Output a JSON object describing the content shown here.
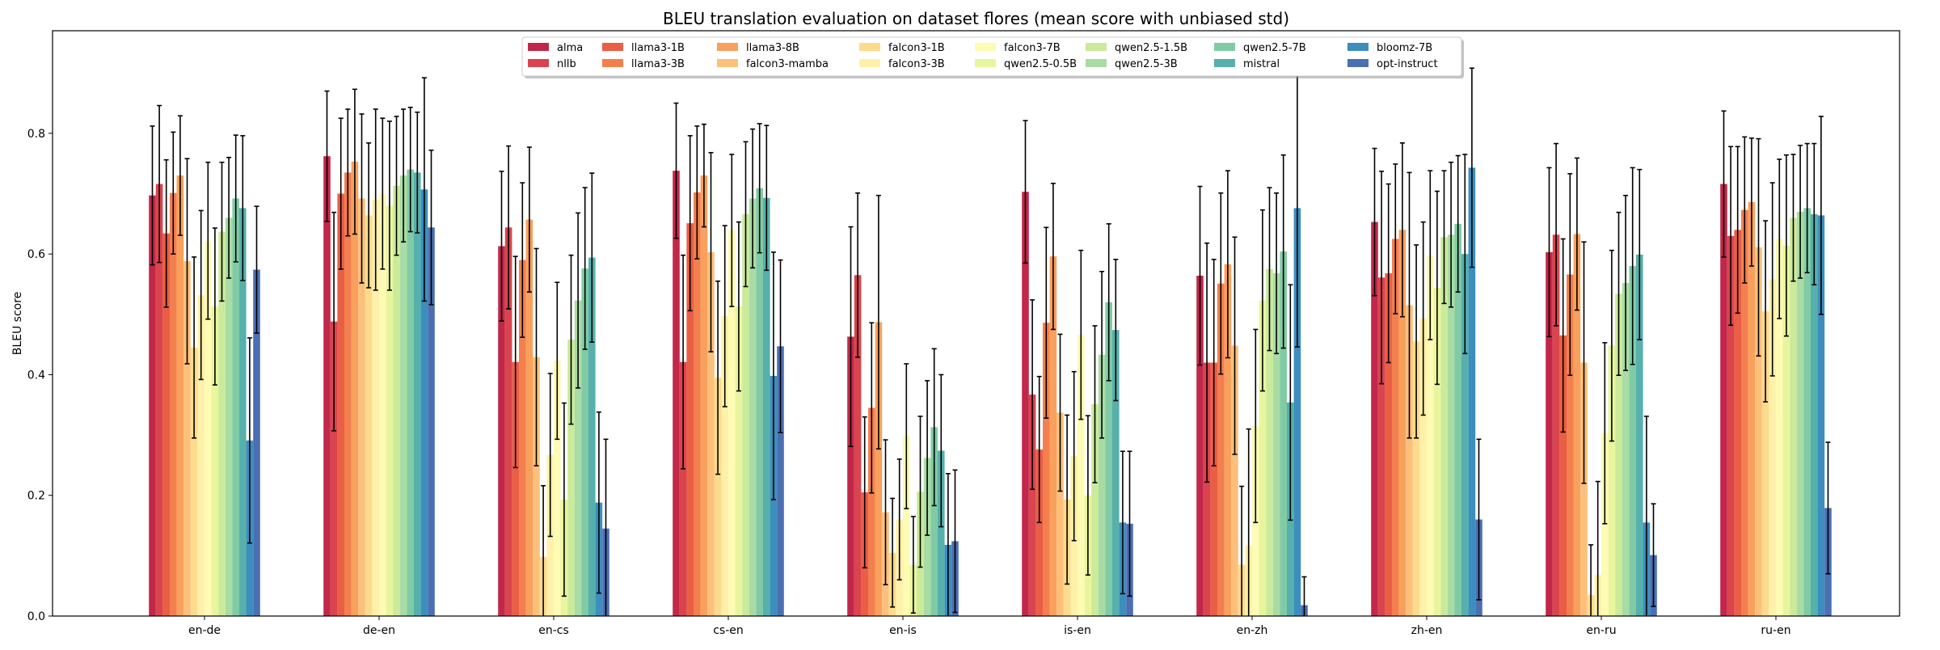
{
  "chart_data": {
    "type": "bar",
    "title": "BLEU translation evaluation on dataset flores (mean score with unbiased std)",
    "xlabel": "",
    "ylabel": "BLEU score",
    "ylim": [
      0,
      0.97
    ],
    "yticks": [
      "0.0",
      "0.2",
      "0.4",
      "0.6",
      "0.8"
    ],
    "grid": false,
    "legend_position": "top-center",
    "categories": [
      "en-de",
      "de-en",
      "en-cs",
      "cs-en",
      "en-is",
      "is-en",
      "en-zh",
      "zh-en",
      "en-ru",
      "ru-en"
    ],
    "series": [
      {
        "name": "alma",
        "color": "#c2274a",
        "values": [
          0.697,
          0.762,
          0.613,
          0.738,
          0.463,
          0.703,
          0.564,
          0.653,
          0.603,
          0.716
        ],
        "std": [
          0.115,
          0.108,
          0.124,
          0.112,
          0.182,
          0.118,
          0.148,
          0.122,
          0.14,
          0.121
        ]
      },
      {
        "name": "nllb",
        "color": "#d9444e",
        "values": [
          0.716,
          0.488,
          0.644,
          0.421,
          0.565,
          0.367,
          0.42,
          0.561,
          0.632,
          0.63
        ],
        "std": [
          0.13,
          0.181,
          0.135,
          0.177,
          0.136,
          0.157,
          0.198,
          0.176,
          0.151,
          0.148
        ]
      },
      {
        "name": "llama3-1B",
        "color": "#ea5e45",
        "values": [
          0.634,
          0.7,
          0.421,
          0.651,
          0.205,
          0.276,
          0.42,
          0.568,
          0.465,
          0.64
        ],
        "std": [
          0.122,
          0.125,
          0.175,
          0.145,
          0.125,
          0.121,
          0.171,
          0.148,
          0.16,
          0.138
        ]
      },
      {
        "name": "llama3-3B",
        "color": "#f37f4f",
        "values": [
          0.701,
          0.735,
          0.59,
          0.702,
          0.345,
          0.486,
          0.551,
          0.625,
          0.566,
          0.673
        ],
        "std": [
          0.101,
          0.105,
          0.128,
          0.11,
          0.141,
          0.158,
          0.15,
          0.124,
          0.167,
          0.121
        ]
      },
      {
        "name": "llama3-8B",
        "color": "#f9a05c",
        "values": [
          0.73,
          0.753,
          0.657,
          0.73,
          0.487,
          0.596,
          0.583,
          0.64,
          0.633,
          0.686
        ],
        "std": [
          0.099,
          0.12,
          0.12,
          0.085,
          0.21,
          0.121,
          0.155,
          0.144,
          0.126,
          0.106
        ]
      },
      {
        "name": "falcon3-mamba",
        "color": "#fdc07a",
        "values": [
          0.588,
          0.692,
          0.429,
          0.603,
          0.172,
          0.337,
          0.448,
          0.515,
          0.42,
          0.611
        ],
        "std": [
          0.17,
          0.14,
          0.18,
          0.165,
          0.12,
          0.13,
          0.18,
          0.22,
          0.2,
          0.18
        ]
      },
      {
        "name": "falcon3-1B",
        "color": "#fedb8c",
        "values": [
          0.445,
          0.664,
          0.098,
          0.395,
          0.105,
          0.193,
          0.085,
          0.455,
          0.035,
          0.505
        ],
        "std": [
          0.15,
          0.12,
          0.118,
          0.16,
          0.09,
          0.14,
          0.13,
          0.16,
          0.083,
          0.15
        ]
      },
      {
        "name": "falcon3-3B",
        "color": "#fff1a9",
        "values": [
          0.532,
          0.69,
          0.267,
          0.497,
          0.16,
          0.265,
          0.117,
          0.493,
          0.068,
          0.558
        ],
        "std": [
          0.14,
          0.15,
          0.135,
          0.15,
          0.1,
          0.14,
          0.193,
          0.16,
          0.155,
          0.16
        ]
      },
      {
        "name": "falcon3-7B",
        "color": "#fdfbb4",
        "values": [
          0.622,
          0.7,
          0.423,
          0.639,
          0.298,
          0.466,
          0.315,
          0.598,
          0.303,
          0.625
        ],
        "std": [
          0.13,
          0.125,
          0.13,
          0.126,
          0.12,
          0.14,
          0.16,
          0.14,
          0.15,
          0.132
        ]
      },
      {
        "name": "qwen2.5-0.5B",
        "color": "#e9f59d",
        "values": [
          0.513,
          0.68,
          0.193,
          0.513,
          0.085,
          0.2,
          0.523,
          0.544,
          0.448,
          0.614
        ],
        "std": [
          0.13,
          0.14,
          0.16,
          0.14,
          0.08,
          0.132,
          0.15,
          0.16,
          0.158,
          0.15
        ]
      },
      {
        "name": "qwen2.5-1.5B",
        "color": "#cbea9a",
        "values": [
          0.637,
          0.713,
          0.458,
          0.666,
          0.206,
          0.351,
          0.575,
          0.628,
          0.534,
          0.66
        ],
        "std": [
          0.115,
          0.115,
          0.14,
          0.12,
          0.125,
          0.13,
          0.135,
          0.11,
          0.135,
          0.105
        ]
      },
      {
        "name": "qwen2.5-3B",
        "color": "#a9dca4",
        "values": [
          0.66,
          0.73,
          0.523,
          0.692,
          0.262,
          0.433,
          0.568,
          0.632,
          0.552,
          0.67
        ],
        "std": [
          0.1,
          0.11,
          0.145,
          0.115,
          0.128,
          0.138,
          0.133,
          0.12,
          0.145,
          0.11
        ]
      },
      {
        "name": "qwen2.5-7B",
        "color": "#80cba5",
        "values": [
          0.692,
          0.74,
          0.576,
          0.709,
          0.313,
          0.52,
          0.604,
          0.65,
          0.58,
          0.676
        ],
        "std": [
          0.105,
          0.103,
          0.134,
          0.107,
          0.13,
          0.13,
          0.16,
          0.113,
          0.163,
          0.107
        ]
      },
      {
        "name": "mistral",
        "color": "#56b0ac",
        "values": [
          0.676,
          0.735,
          0.594,
          0.693,
          0.274,
          0.474,
          0.354,
          0.6,
          0.599,
          0.666
        ],
        "std": [
          0.12,
          0.1,
          0.14,
          0.12,
          0.126,
          0.117,
          0.195,
          0.165,
          0.141,
          0.117
        ]
      },
      {
        "name": "bloomz-7B",
        "color": "#3c8ebd",
        "values": [
          0.291,
          0.707,
          0.188,
          0.398,
          0.118,
          0.155,
          0.676,
          0.743,
          0.155,
          0.664
        ],
        "std": [
          0.17,
          0.185,
          0.15,
          0.205,
          0.118,
          0.118,
          0.23,
          0.165,
          0.176,
          0.164
        ]
      },
      {
        "name": "opt-instruct",
        "color": "#4c6fb2",
        "values": [
          0.574,
          0.644,
          0.145,
          0.447,
          0.124,
          0.153,
          0.018,
          0.16,
          0.101,
          0.179
        ],
        "std": [
          0.105,
          0.128,
          0.148,
          0.143,
          0.118,
          0.12,
          0.047,
          0.133,
          0.085,
          0.109
        ]
      }
    ]
  }
}
